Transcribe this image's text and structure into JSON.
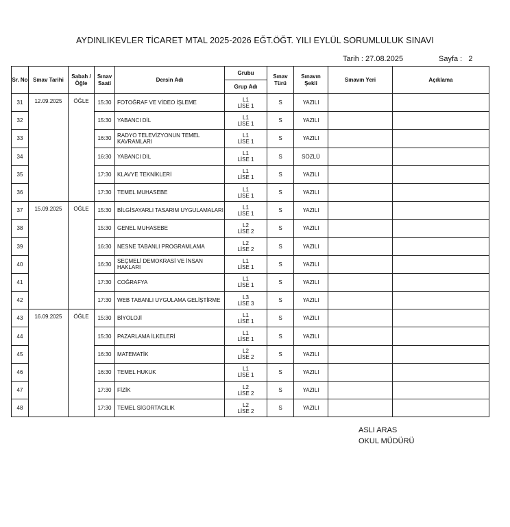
{
  "title": "AYDINLIKEVLER TİCARET MTAL  2025-2026 EĞT.ÖĞT. YILI EYLÜL SORUMLULUK SINAVI",
  "tarih_label": "Tarih  :",
  "tarih": "27.08.2025",
  "sayfa_label": "Sayfa  :",
  "sayfa": "2",
  "headers": {
    "sr": "Sr. No",
    "tarih": "Sınav Tarihi",
    "sabah": "Sabah / Öğle",
    "saat": "Sınav Saati",
    "ders": "Dersin Adı",
    "grubu": "Grubu",
    "grup_adi": "Grup Adı",
    "tur": "Sınav Türü",
    "sekil": "Sınavın Şekli",
    "yer": "Sınavın Yeri",
    "aciklama": "Açıklama"
  },
  "groups": [
    {
      "tarih": "12.09.2025",
      "sabah": "ÖĞLE",
      "rows": [
        {
          "no": "31",
          "saat": "15:30",
          "ders": "FOTOĞRAF VE VİDEO İŞLEME",
          "grubu": "L1",
          "grup": "LİSE 1",
          "tur": "S",
          "sekil": "YAZILI"
        },
        {
          "no": "32",
          "saat": "15:30",
          "ders": "YABANCI DİL",
          "grubu": "L1",
          "grup": "LİSE 1",
          "tur": "S",
          "sekil": "YAZILI"
        },
        {
          "no": "33",
          "saat": "16:30",
          "ders": "RADYO TELEVİZYONUN TEMEL KAVRAMLARI",
          "grubu": "L1",
          "grup": "LİSE 1",
          "tur": "S",
          "sekil": "YAZILI"
        },
        {
          "no": "34",
          "saat": "16:30",
          "ders": "YABANCI DİL",
          "grubu": "L1",
          "grup": "LİSE 1",
          "tur": "S",
          "sekil": "SÖZLÜ"
        },
        {
          "no": "35",
          "saat": "17:30",
          "ders": "KLAVYE TEKNİKLERİ",
          "grubu": "L1",
          "grup": "LİSE 1",
          "tur": "S",
          "sekil": "YAZILI"
        },
        {
          "no": "36",
          "saat": "17:30",
          "ders": "TEMEL MUHASEBE",
          "grubu": "L1",
          "grup": "LİSE 1",
          "tur": "S",
          "sekil": "YAZILI"
        }
      ]
    },
    {
      "tarih": "15.09.2025",
      "sabah": "ÖĞLE",
      "rows": [
        {
          "no": "37",
          "saat": "15:30",
          "ders": "BİLGİSAYARLI TASARIM UYGULAMALARI",
          "grubu": "L1",
          "grup": "LİSE 1",
          "tur": "S",
          "sekil": "YAZILI"
        },
        {
          "no": "38",
          "saat": "15:30",
          "ders": "GENEL MUHASEBE",
          "grubu": "L2",
          "grup": "LİSE 2",
          "tur": "S",
          "sekil": "YAZILI"
        },
        {
          "no": "39",
          "saat": "16:30",
          "ders": "NESNE TABANLI PROGRAMLAMA",
          "grubu": "L2",
          "grup": "LİSE 2",
          "tur": "S",
          "sekil": "YAZILI"
        },
        {
          "no": "40",
          "saat": "16:30",
          "ders": "SEÇMELİ DEMOKRASİ VE İNSAN HAKLARI",
          "grubu": "L1",
          "grup": "LİSE 1",
          "tur": "S",
          "sekil": "YAZILI"
        },
        {
          "no": "41",
          "saat": "17:30",
          "ders": "COĞRAFYA",
          "grubu": "L1",
          "grup": "LİSE 1",
          "tur": "S",
          "sekil": "YAZILI"
        },
        {
          "no": "42",
          "saat": "17:30",
          "ders": "WEB TABANLI UYGULAMA GELİŞTİRME",
          "grubu": "L3",
          "grup": "LİSE 3",
          "tur": "S",
          "sekil": "YAZILI"
        }
      ]
    },
    {
      "tarih": "16.09.2025",
      "sabah": "ÖĞLE",
      "rows": [
        {
          "no": "43",
          "saat": "15:30",
          "ders": "BİYOLOJİ",
          "grubu": "L1",
          "grup": "LİSE 1",
          "tur": "S",
          "sekil": "YAZILI"
        },
        {
          "no": "44",
          "saat": "15:30",
          "ders": "PAZARLAMA İLKELERİ",
          "grubu": "L1",
          "grup": "LİSE 1",
          "tur": "S",
          "sekil": "YAZILI"
        },
        {
          "no": "45",
          "saat": "16:30",
          "ders": "MATEMATİK",
          "grubu": "L2",
          "grup": "LİSE 2",
          "tur": "S",
          "sekil": "YAZILI"
        },
        {
          "no": "46",
          "saat": "16:30",
          "ders": "TEMEL HUKUK",
          "grubu": "L1",
          "grup": "LİSE 1",
          "tur": "S",
          "sekil": "YAZILI"
        },
        {
          "no": "47",
          "saat": "17:30",
          "ders": "FİZİK",
          "grubu": "L2",
          "grup": "LİSE 2",
          "tur": "S",
          "sekil": "YAZILI"
        },
        {
          "no": "48",
          "saat": "17:30",
          "ders": "TEMEL SİGORTACILIK",
          "grubu": "L2",
          "grup": "LİSE 2",
          "tur": "S",
          "sekil": "YAZILI"
        }
      ]
    }
  ],
  "signature": {
    "name": "ASLI ARAS",
    "role": "OKUL MÜDÜRÜ"
  }
}
